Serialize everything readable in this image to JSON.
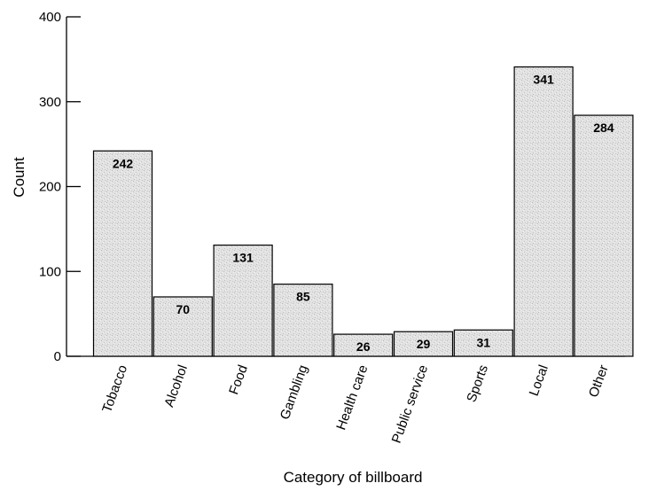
{
  "chart_data": {
    "type": "bar",
    "title": "",
    "xlabel": "Category of billboard",
    "ylabel": "Count",
    "ylim": [
      0,
      400
    ],
    "yticks": [
      0,
      100,
      200,
      300,
      400
    ],
    "categories": [
      "Tobacco",
      "Alcohol",
      "Food",
      "Gambling",
      "Health care",
      "Public service",
      "Sports",
      "Local",
      "Other"
    ],
    "values": [
      242,
      70,
      131,
      85,
      26,
      29,
      31,
      341,
      284
    ],
    "value_labels": [
      "242",
      "70",
      "131",
      "85",
      "26",
      "29",
      "31",
      "341",
      "284"
    ],
    "grid": false,
    "legend": "none",
    "colors": {
      "bar_fill": "#dcdcdc",
      "bar_stroke": "#000000",
      "axis": "#000000",
      "text": "#000000"
    }
  }
}
